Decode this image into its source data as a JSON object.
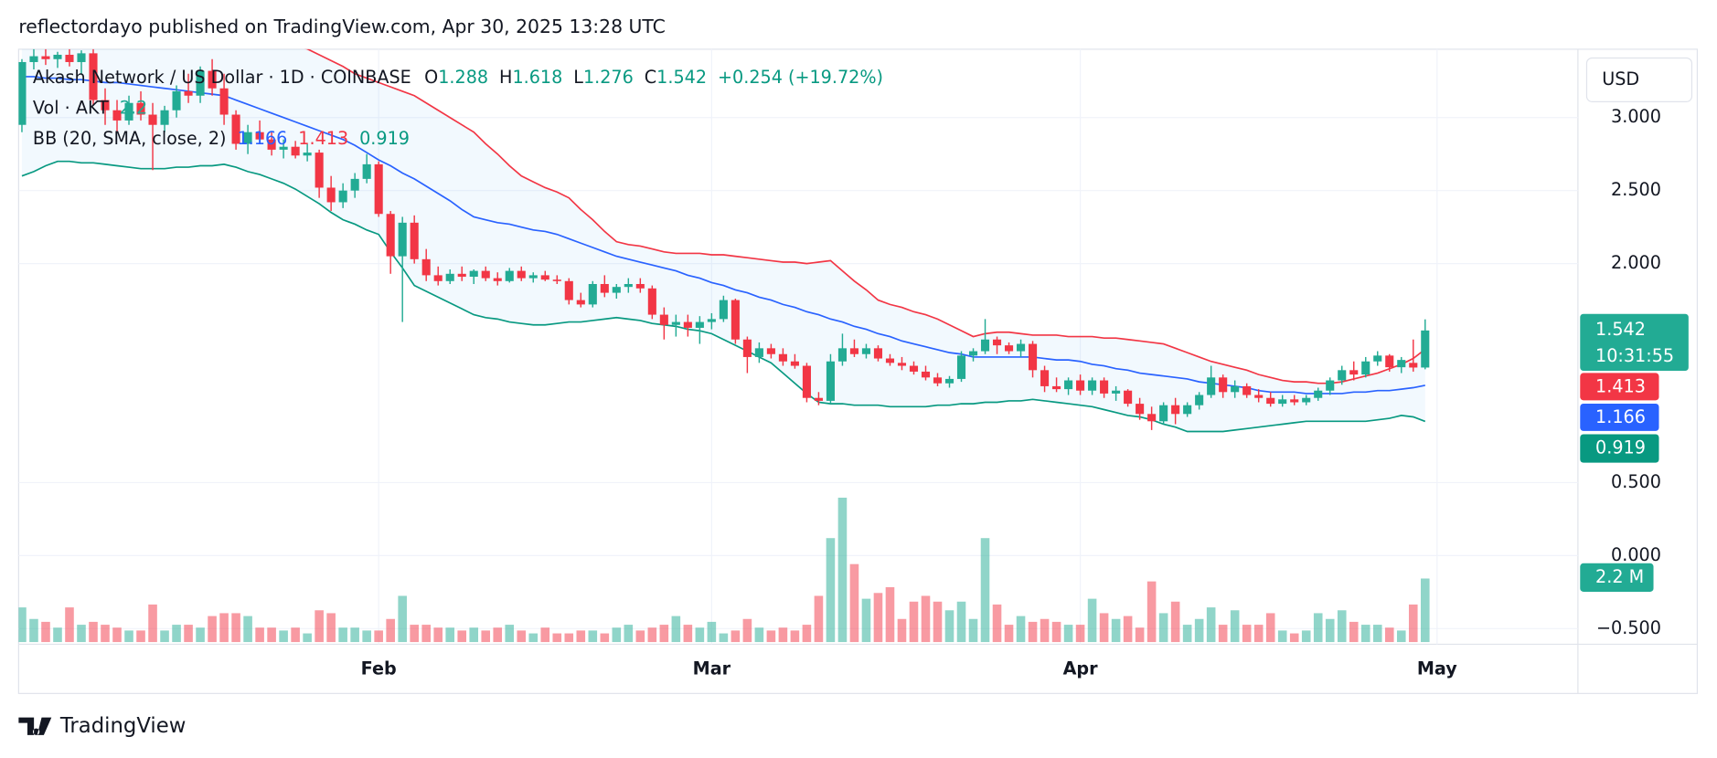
{
  "header": {
    "byline": "reflectordayo published on TradingView.com, Apr 30, 2025 13:28 UTC"
  },
  "chart_data": {
    "type": "candlestick",
    "title": "Akash Network / US Dollar · 1D · COINBASE",
    "ohlc_labels": [
      "O",
      "H",
      "L",
      "C"
    ],
    "change": "+0.254 (+19.72%)",
    "volume_title": "Vol · AKT",
    "bb_title": "BB (20, SMA, close, 2)",
    "currency": "USD",
    "countdown": "10:31:55",
    "up_color": "#22ab94",
    "down_color": "#f23645",
    "grid": true,
    "ylim": [
      -0.607,
      3.468
    ],
    "yticks": [
      {
        "value": 3,
        "label": "3.000"
      },
      {
        "value": 2.5,
        "label": "2.500"
      },
      {
        "value": 2,
        "label": "2.000"
      },
      {
        "value": 0.5,
        "label": "0.500"
      },
      {
        "value": 0,
        "label": "0.000"
      },
      {
        "value": -0.5,
        "label": "−0.500"
      }
    ],
    "categories": [
      null,
      null,
      null,
      null,
      null,
      null,
      null,
      null,
      null,
      null,
      null,
      null,
      null,
      null,
      null,
      null,
      null,
      null,
      null,
      null,
      null,
      null,
      null,
      null,
      null,
      null,
      null,
      null,
      null,
      null,
      "Feb",
      null,
      null,
      null,
      null,
      null,
      null,
      null,
      null,
      null,
      null,
      null,
      null,
      null,
      null,
      null,
      null,
      null,
      null,
      null,
      null,
      null,
      null,
      null,
      null,
      null,
      null,
      null,
      "Mar",
      null,
      null,
      null,
      null,
      null,
      null,
      null,
      null,
      null,
      null,
      null,
      null,
      null,
      null,
      null,
      null,
      null,
      null,
      null,
      null,
      null,
      null,
      null,
      null,
      null,
      null,
      null,
      null,
      null,
      null,
      "Apr",
      null,
      null,
      null,
      null,
      null,
      null,
      null,
      null,
      null,
      null,
      null,
      null,
      null,
      null,
      null,
      null,
      null,
      null,
      null,
      null,
      null,
      null,
      null,
      null,
      null,
      null,
      null,
      null,
      null,
      "May"
    ],
    "ohlc": [
      [
        2.95,
        3.4,
        2.9,
        3.38
      ],
      [
        3.38,
        3.47,
        3.33,
        3.42
      ],
      [
        3.42,
        3.47,
        3.36,
        3.4
      ],
      [
        3.4,
        3.45,
        3.34,
        3.43
      ],
      [
        3.43,
        3.47,
        3.35,
        3.38
      ],
      [
        3.38,
        3.46,
        3.3,
        3.44
      ],
      [
        3.44,
        3.47,
        3.08,
        3.12
      ],
      [
        3.12,
        3.2,
        2.95,
        3.05
      ],
      [
        3.05,
        3.12,
        2.9,
        2.98
      ],
      [
        2.98,
        3.15,
        2.95,
        3.1
      ],
      [
        3.1,
        3.18,
        2.98,
        3.02
      ],
      [
        3.02,
        3.1,
        2.64,
        2.95
      ],
      [
        2.95,
        3.08,
        2.9,
        3.05
      ],
      [
        3.05,
        3.22,
        3,
        3.18
      ],
      [
        3.18,
        3.3,
        3.1,
        3.15
      ],
      [
        3.15,
        3.35,
        3.1,
        3.32
      ],
      [
        3.32,
        3.4,
        3.15,
        3.2
      ],
      [
        3.2,
        3.3,
        2.95,
        3.02
      ],
      [
        3.02,
        3.05,
        2.78,
        2.82
      ],
      [
        2.82,
        2.95,
        2.75,
        2.9
      ],
      [
        2.9,
        2.98,
        2.82,
        2.85
      ],
      [
        2.85,
        2.9,
        2.74,
        2.78
      ],
      [
        2.78,
        2.85,
        2.72,
        2.8
      ],
      [
        2.8,
        2.84,
        2.72,
        2.74
      ],
      [
        2.74,
        2.82,
        2.7,
        2.76
      ],
      [
        2.76,
        2.78,
        2.45,
        2.52
      ],
      [
        2.52,
        2.6,
        2.36,
        2.42
      ],
      [
        2.42,
        2.55,
        2.38,
        2.5
      ],
      [
        2.5,
        2.62,
        2.45,
        2.58
      ],
      [
        2.58,
        2.75,
        2.55,
        2.68
      ],
      [
        2.68,
        2.7,
        2.32,
        2.34
      ],
      [
        2.34,
        2.36,
        1.93,
        2.05
      ],
      [
        2.05,
        2.32,
        1.6,
        2.28
      ],
      [
        2.28,
        2.33,
        2,
        2.03
      ],
      [
        2.03,
        2.1,
        1.88,
        1.92
      ],
      [
        1.92,
        1.98,
        1.85,
        1.88
      ],
      [
        1.88,
        1.96,
        1.86,
        1.93
      ],
      [
        1.93,
        1.98,
        1.88,
        1.91
      ],
      [
        1.91,
        1.96,
        1.86,
        1.95
      ],
      [
        1.95,
        1.98,
        1.88,
        1.9
      ],
      [
        1.9,
        1.94,
        1.85,
        1.88
      ],
      [
        1.88,
        1.97,
        1.87,
        1.95
      ],
      [
        1.95,
        1.98,
        1.88,
        1.9
      ],
      [
        1.9,
        1.94,
        1.87,
        1.92
      ],
      [
        1.92,
        1.95,
        1.88,
        1.89
      ],
      [
        1.89,
        1.92,
        1.86,
        1.88
      ],
      [
        1.88,
        1.9,
        1.72,
        1.75
      ],
      [
        1.75,
        1.8,
        1.7,
        1.72
      ],
      [
        1.72,
        1.88,
        1.7,
        1.86
      ],
      [
        1.86,
        1.92,
        1.77,
        1.8
      ],
      [
        1.8,
        1.86,
        1.76,
        1.84
      ],
      [
        1.84,
        1.9,
        1.8,
        1.86
      ],
      [
        1.86,
        1.9,
        1.8,
        1.83
      ],
      [
        1.83,
        1.85,
        1.62,
        1.65
      ],
      [
        1.65,
        1.7,
        1.48,
        1.58
      ],
      [
        1.58,
        1.65,
        1.5,
        1.6
      ],
      [
        1.6,
        1.65,
        1.5,
        1.56
      ],
      [
        1.56,
        1.64,
        1.45,
        1.6
      ],
      [
        1.6,
        1.66,
        1.55,
        1.62
      ],
      [
        1.62,
        1.78,
        1.6,
        1.75
      ],
      [
        1.75,
        1.76,
        1.45,
        1.48
      ],
      [
        1.48,
        1.5,
        1.25,
        1.36
      ],
      [
        1.36,
        1.46,
        1.32,
        1.42
      ],
      [
        1.42,
        1.45,
        1.35,
        1.38
      ],
      [
        1.38,
        1.42,
        1.3,
        1.33
      ],
      [
        1.33,
        1.38,
        1.28,
        1.3
      ],
      [
        1.3,
        1.32,
        1.05,
        1.08
      ],
      [
        1.08,
        1.12,
        1.03,
        1.06
      ],
      [
        1.06,
        1.38,
        1.04,
        1.33
      ],
      [
        1.33,
        1.52,
        1.3,
        1.42
      ],
      [
        1.42,
        1.48,
        1.36,
        1.38
      ],
      [
        1.38,
        1.45,
        1.35,
        1.42
      ],
      [
        1.42,
        1.44,
        1.33,
        1.35
      ],
      [
        1.35,
        1.38,
        1.3,
        1.32
      ],
      [
        1.32,
        1.36,
        1.27,
        1.3
      ],
      [
        1.3,
        1.33,
        1.24,
        1.26
      ],
      [
        1.26,
        1.3,
        1.2,
        1.22
      ],
      [
        1.22,
        1.25,
        1.16,
        1.18
      ],
      [
        1.18,
        1.23,
        1.15,
        1.21
      ],
      [
        1.21,
        1.4,
        1.19,
        1.37
      ],
      [
        1.37,
        1.42,
        1.33,
        1.4
      ],
      [
        1.4,
        1.62,
        1.38,
        1.48
      ],
      [
        1.48,
        1.5,
        1.38,
        1.44
      ],
      [
        1.44,
        1.46,
        1.38,
        1.4
      ],
      [
        1.4,
        1.48,
        1.36,
        1.45
      ],
      [
        1.45,
        1.47,
        1.22,
        1.27
      ],
      [
        1.27,
        1.3,
        1.12,
        1.16
      ],
      [
        1.16,
        1.22,
        1.12,
        1.14
      ],
      [
        1.14,
        1.22,
        1.1,
        1.2
      ],
      [
        1.2,
        1.24,
        1.1,
        1.13
      ],
      [
        1.13,
        1.22,
        1.1,
        1.2
      ],
      [
        1.2,
        1.22,
        1.08,
        1.11
      ],
      [
        1.11,
        1.16,
        1.06,
        1.13
      ],
      [
        1.13,
        1.14,
        1.02,
        1.04
      ],
      [
        1.04,
        1.08,
        0.93,
        0.97
      ],
      [
        0.97,
        1.02,
        0.86,
        0.92
      ],
      [
        0.92,
        1.05,
        0.9,
        1.03
      ],
      [
        1.03,
        1.08,
        0.9,
        0.97
      ],
      [
        0.97,
        1.05,
        0.95,
        1.03
      ],
      [
        1.03,
        1.12,
        1,
        1.1
      ],
      [
        1.1,
        1.3,
        1.08,
        1.22
      ],
      [
        1.22,
        1.24,
        1.08,
        1.12
      ],
      [
        1.12,
        1.2,
        1.08,
        1.16
      ],
      [
        1.16,
        1.18,
        1.08,
        1.1
      ],
      [
        1.1,
        1.14,
        1.05,
        1.08
      ],
      [
        1.08,
        1.12,
        1.02,
        1.04
      ],
      [
        1.04,
        1.1,
        1.02,
        1.07
      ],
      [
        1.07,
        1.1,
        1.03,
        1.05
      ],
      [
        1.05,
        1.1,
        1.03,
        1.08
      ],
      [
        1.08,
        1.15,
        1.06,
        1.13
      ],
      [
        1.13,
        1.22,
        1.1,
        1.2
      ],
      [
        1.2,
        1.3,
        1.17,
        1.27
      ],
      [
        1.27,
        1.33,
        1.2,
        1.24
      ],
      [
        1.24,
        1.36,
        1.22,
        1.33
      ],
      [
        1.33,
        1.4,
        1.3,
        1.37
      ],
      [
        1.37,
        1.38,
        1.26,
        1.29
      ],
      [
        1.29,
        1.36,
        1.25,
        1.34
      ],
      [
        1.32,
        1.48,
        1.26,
        1.288
      ],
      [
        1.288,
        1.618,
        1.276,
        1.542
      ],
      null
    ],
    "volume": [
      1.2,
      0.8,
      0.7,
      0.5,
      1.2,
      0.6,
      0.7,
      0.6,
      0.5,
      0.4,
      0.4,
      1.3,
      0.4,
      0.6,
      0.6,
      0.5,
      0.9,
      1.0,
      1.0,
      0.9,
      0.5,
      0.5,
      0.4,
      0.5,
      0.3,
      1.1,
      1.0,
      0.5,
      0.5,
      0.4,
      0.4,
      0.8,
      1.6,
      0.6,
      0.6,
      0.5,
      0.5,
      0.4,
      0.5,
      0.4,
      0.5,
      0.6,
      0.4,
      0.3,
      0.5,
      0.3,
      0.3,
      0.4,
      0.4,
      0.3,
      0.5,
      0.6,
      0.4,
      0.5,
      0.6,
      0.9,
      0.6,
      0.5,
      0.7,
      0.3,
      0.4,
      0.8,
      0.5,
      0.4,
      0.5,
      0.4,
      0.6,
      1.6,
      3.6,
      5.0,
      2.7,
      1.5,
      1.7,
      1.9,
      0.8,
      1.4,
      1.6,
      1.4,
      1.1,
      1.4,
      0.8,
      3.6,
      1.3,
      0.6,
      0.9,
      0.7,
      0.8,
      0.7,
      0.6,
      0.6,
      1.5,
      1.0,
      0.8,
      0.9,
      0.5,
      2.1,
      1.0,
      1.4,
      0.6,
      0.8,
      1.2,
      0.6,
      1.1,
      0.6,
      0.6,
      1.0,
      0.4,
      0.3,
      0.4,
      1.0,
      0.8,
      1.1,
      0.7,
      0.6,
      0.6,
      0.5,
      0.4,
      1.3,
      2.2,
      null
    ],
    "volume_label": {
      "value": 2.2,
      "label": "2.2 M"
    },
    "bands": {
      "fill": "#2196f3",
      "upper": {
        "color": "#f23645",
        "values": [
          3.7,
          3.7,
          3.7,
          3.69,
          3.69,
          3.68,
          3.68,
          3.67,
          3.67,
          3.66,
          3.66,
          3.65,
          3.65,
          3.64,
          3.63,
          3.62,
          3.61,
          3.6,
          3.58,
          3.56,
          3.54,
          3.52,
          3.5,
          3.49,
          3.47,
          3.43,
          3.39,
          3.35,
          3.3,
          3.27,
          3.24,
          3.21,
          3.18,
          3.15,
          3.1,
          3.05,
          3.0,
          2.95,
          2.9,
          2.82,
          2.75,
          2.67,
          2.6,
          2.56,
          2.52,
          2.49,
          2.45,
          2.37,
          2.3,
          2.22,
          2.15,
          2.13,
          2.12,
          2.1,
          2.08,
          2.07,
          2.07,
          2.07,
          2.06,
          2.06,
          2.05,
          2.04,
          2.03,
          2.02,
          2.01,
          2.01,
          2.0,
          2.01,
          2.02,
          1.95,
          1.88,
          1.82,
          1.75,
          1.72,
          1.7,
          1.67,
          1.65,
          1.62,
          1.58,
          1.54,
          1.5,
          1.52,
          1.53,
          1.53,
          1.52,
          1.51,
          1.51,
          1.51,
          1.5,
          1.5,
          1.5,
          1.49,
          1.49,
          1.48,
          1.47,
          1.46,
          1.45,
          1.42,
          1.39,
          1.36,
          1.33,
          1.31,
          1.29,
          1.27,
          1.24,
          1.22,
          1.2,
          1.19,
          1.19,
          1.18,
          1.18,
          1.19,
          1.21,
          1.23,
          1.25,
          1.28,
          1.31,
          1.35,
          1.413,
          null
        ]
      },
      "basis": {
        "color": "#2962ff",
        "values": [
          3.28,
          3.28,
          3.27,
          3.27,
          3.26,
          3.26,
          3.25,
          3.24,
          3.24,
          3.23,
          3.22,
          3.21,
          3.2,
          3.19,
          3.18,
          3.17,
          3.16,
          3.15,
          3.12,
          3.09,
          3.06,
          3.03,
          3.0,
          2.97,
          2.94,
          2.91,
          2.88,
          2.85,
          2.81,
          2.76,
          2.71,
          2.67,
          2.62,
          2.58,
          2.53,
          2.48,
          2.43,
          2.37,
          2.32,
          2.3,
          2.28,
          2.27,
          2.25,
          2.23,
          2.22,
          2.2,
          2.17,
          2.14,
          2.11,
          2.08,
          2.05,
          2.03,
          2.01,
          1.99,
          1.97,
          1.95,
          1.92,
          1.9,
          1.87,
          1.85,
          1.82,
          1.8,
          1.77,
          1.75,
          1.72,
          1.7,
          1.67,
          1.65,
          1.62,
          1.6,
          1.57,
          1.55,
          1.52,
          1.5,
          1.47,
          1.45,
          1.43,
          1.41,
          1.39,
          1.38,
          1.36,
          1.36,
          1.36,
          1.36,
          1.36,
          1.36,
          1.35,
          1.34,
          1.34,
          1.33,
          1.31,
          1.3,
          1.28,
          1.27,
          1.25,
          1.24,
          1.23,
          1.22,
          1.21,
          1.19,
          1.18,
          1.17,
          1.16,
          1.15,
          1.13,
          1.12,
          1.12,
          1.12,
          1.11,
          1.11,
          1.11,
          1.11,
          1.12,
          1.12,
          1.13,
          1.13,
          1.14,
          1.15,
          1.166,
          null
        ]
      },
      "lower": {
        "color": "#089981",
        "values": [
          2.6,
          2.63,
          2.67,
          2.7,
          2.7,
          2.69,
          2.69,
          2.68,
          2.67,
          2.66,
          2.65,
          2.65,
          2.65,
          2.66,
          2.66,
          2.67,
          2.67,
          2.68,
          2.66,
          2.63,
          2.61,
          2.58,
          2.55,
          2.51,
          2.46,
          2.41,
          2.35,
          2.3,
          2.27,
          2.23,
          2.2,
          2.08,
          1.97,
          1.85,
          1.81,
          1.77,
          1.73,
          1.69,
          1.65,
          1.63,
          1.62,
          1.6,
          1.59,
          1.58,
          1.58,
          1.59,
          1.6,
          1.6,
          1.61,
          1.62,
          1.63,
          1.62,
          1.61,
          1.59,
          1.58,
          1.57,
          1.55,
          1.54,
          1.52,
          1.48,
          1.44,
          1.4,
          1.36,
          1.32,
          1.25,
          1.18,
          1.11,
          1.05,
          1.04,
          1.04,
          1.03,
          1.03,
          1.03,
          1.02,
          1.02,
          1.02,
          1.02,
          1.03,
          1.03,
          1.04,
          1.04,
          1.05,
          1.05,
          1.06,
          1.06,
          1.07,
          1.06,
          1.05,
          1.04,
          1.03,
          1.02,
          1.0,
          0.98,
          0.96,
          0.95,
          0.93,
          0.9,
          0.88,
          0.85,
          0.85,
          0.85,
          0.85,
          0.86,
          0.87,
          0.88,
          0.89,
          0.9,
          0.91,
          0.92,
          0.92,
          0.92,
          0.92,
          0.92,
          0.92,
          0.93,
          0.94,
          0.96,
          0.95,
          0.919,
          null
        ]
      }
    }
  },
  "footer": {
    "brand": "TradingView"
  }
}
